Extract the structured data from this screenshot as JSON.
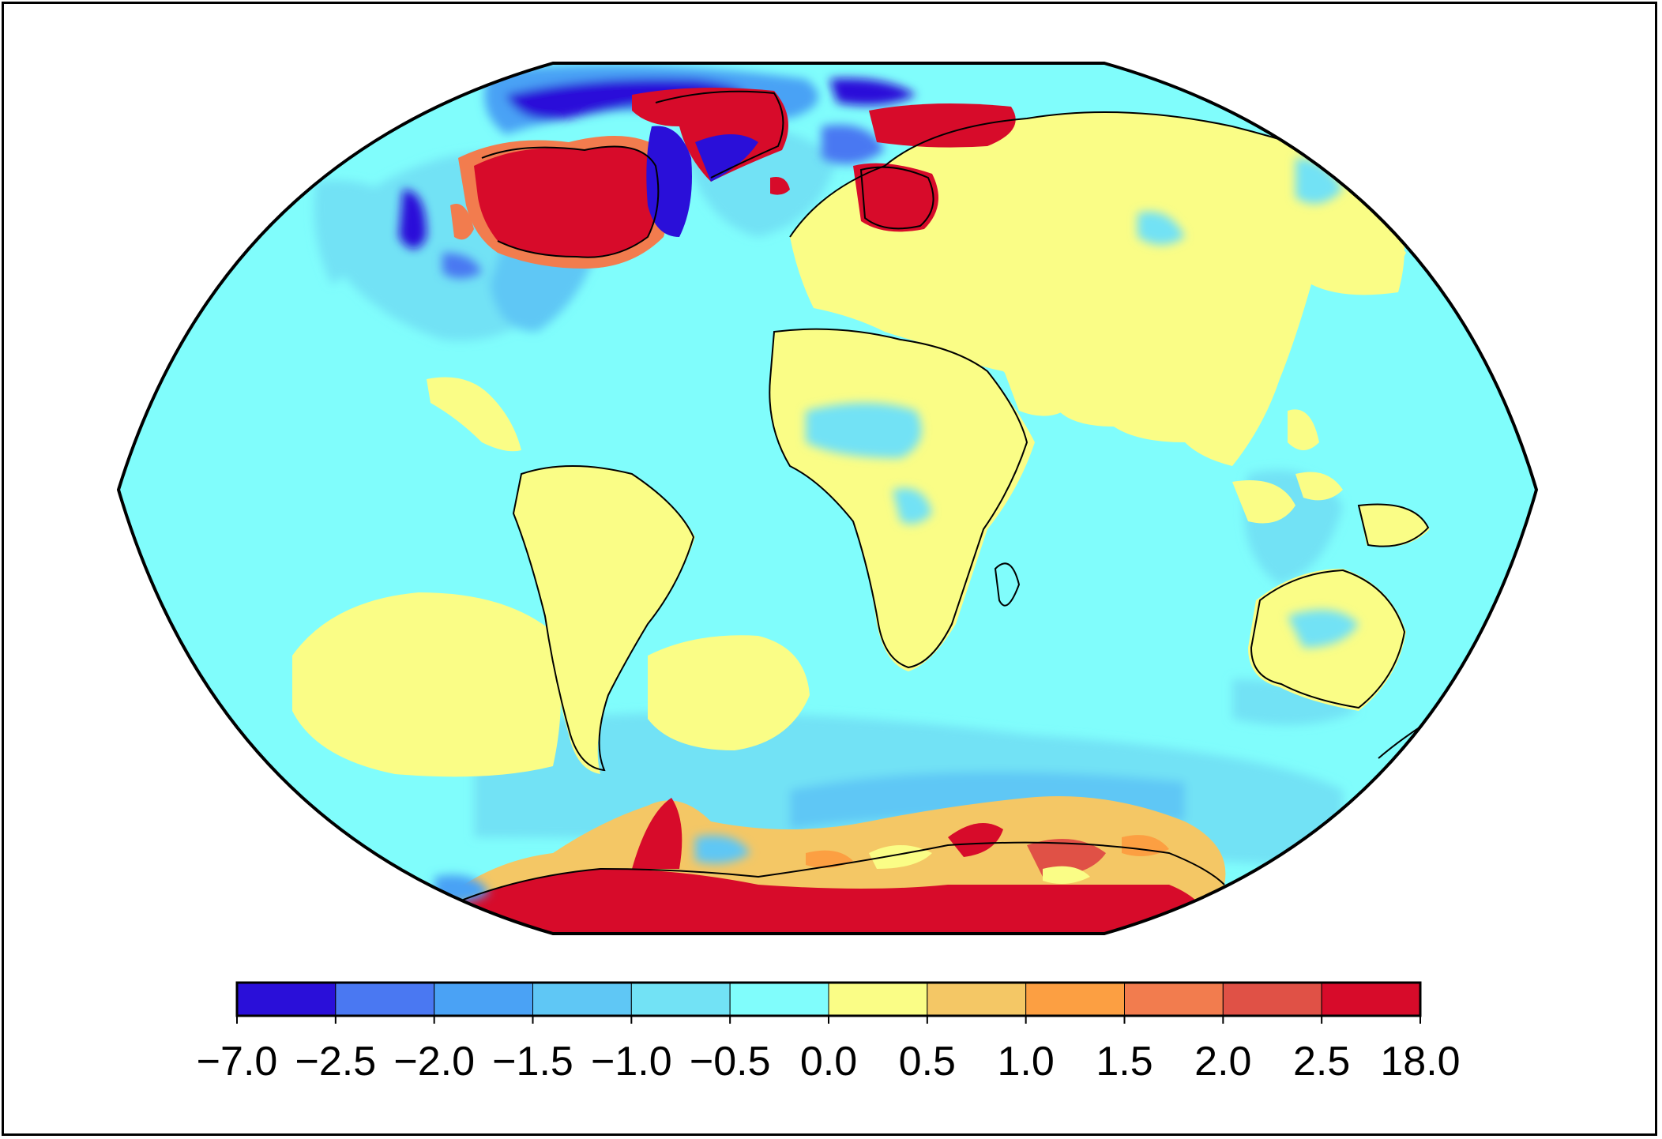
{
  "figure": {
    "type": "choropleth-map",
    "projection": "Winkel Tripel (world)",
    "map_content": "global field anomaly over oceans and continents with coastlines; strong positive values over Canada, Greenland coast, Scandinavia and Antarctica; negative values over Davis Strait / Labrador Sea, Arctic Ocean and near Alaska; weak positive over Eurasia, Africa, Australia and South America and two patches in the South Pacific and South Atlantic; weak negative over most oceans"
  },
  "colorbar": {
    "orientation": "horizontal",
    "bins": [
      {
        "from": "−7.0",
        "to": "−2.5",
        "color": "#2a0fd9"
      },
      {
        "from": "−2.5",
        "to": "−2.0",
        "color": "#4a78f2"
      },
      {
        "from": "−2.0",
        "to": "−1.5",
        "color": "#4aa2f5"
      },
      {
        "from": "−1.5",
        "to": "−1.0",
        "color": "#5fc7f5"
      },
      {
        "from": "−1.0",
        "to": "−0.5",
        "color": "#72e2f5"
      },
      {
        "from": "−0.5",
        "to": "0.0",
        "color": "#80fdfc"
      },
      {
        "from": "0.0",
        "to": "0.5",
        "color": "#fafd86"
      },
      {
        "from": "0.5",
        "to": "1.0",
        "color": "#f4c765"
      },
      {
        "from": "1.0",
        "to": "1.5",
        "color": "#fc9f42"
      },
      {
        "from": "1.5",
        "to": "2.0",
        "color": "#f27c4e"
      },
      {
        "from": "2.0",
        "to": "2.5",
        "color": "#e05146"
      },
      {
        "from": "2.5",
        "to": "18.0",
        "color": "#d70b2a"
      }
    ],
    "tick_labels": [
      "−7.0",
      "−2.5",
      "−2.0",
      "−1.5",
      "−1.0",
      "−0.5",
      "0.0",
      "0.5",
      "1.0",
      "1.5",
      "2.0",
      "2.5",
      "18.0"
    ]
  },
  "colors": {
    "ocean_background": "#80fdfc",
    "land_weak_positive": "#fafd86",
    "strong_positive": "#d70b2a",
    "strong_negative": "#2a0fd9",
    "outline": "#000000"
  }
}
